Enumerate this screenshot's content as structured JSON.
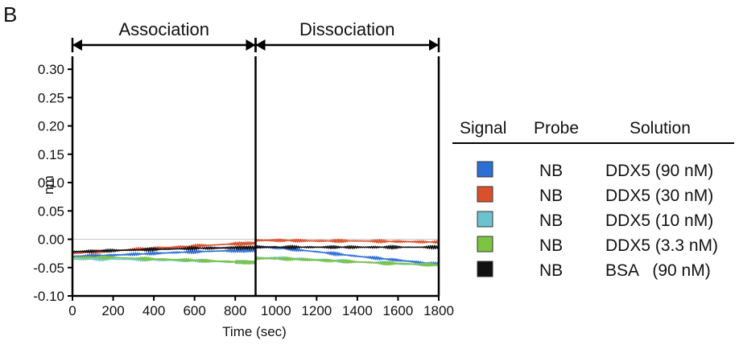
{
  "panel_label": "B",
  "chart_data": {
    "type": "line",
    "title": "",
    "xlabel": "Time (sec)",
    "ylabel": "nm",
    "xlim": [
      0,
      1800
    ],
    "ylim": [
      -0.1,
      0.32
    ],
    "x_ticks": [
      "0",
      "200",
      "400",
      "600",
      "800",
      "1000",
      "1200",
      "1400",
      "1600",
      "1800"
    ],
    "x_tick_values": [
      0,
      200,
      400,
      600,
      800,
      1000,
      1200,
      1400,
      1600,
      1800
    ],
    "y_ticks": [
      "-0.10",
      "-0.05",
      "0.00",
      "0.05",
      "0.10",
      "0.15",
      "0.20",
      "0.25",
      "0.30"
    ],
    "y_tick_values": [
      -0.1,
      -0.05,
      0.0,
      0.05,
      0.1,
      0.15,
      0.2,
      0.25,
      0.3
    ],
    "grid": false,
    "zero_line": true,
    "phase_boundary": 900,
    "phases": [
      {
        "label": "Association",
        "start": 0,
        "end": 900
      },
      {
        "label": "Dissociation",
        "start": 900,
        "end": 1800
      }
    ],
    "series": [
      {
        "color": "#2e6fd6",
        "x": [
          0,
          200,
          400,
          600,
          800,
          900,
          900,
          1000,
          1200,
          1400,
          1600,
          1800
        ],
        "y": [
          -0.03,
          -0.028,
          -0.025,
          -0.022,
          -0.02,
          -0.02,
          -0.012,
          -0.015,
          -0.022,
          -0.03,
          -0.037,
          -0.044
        ]
      },
      {
        "color": "#d9502b",
        "x": [
          0,
          200,
          400,
          600,
          800,
          900,
          900,
          1000,
          1200,
          1400,
          1600,
          1800
        ],
        "y": [
          -0.025,
          -0.02,
          -0.016,
          -0.012,
          -0.008,
          -0.007,
          -0.002,
          -0.002,
          -0.003,
          -0.003,
          -0.004,
          -0.005
        ]
      },
      {
        "color": "#6cc3cf",
        "x": [
          0,
          200,
          400,
          600,
          800,
          900,
          900,
          1000,
          1200,
          1400,
          1600,
          1800
        ],
        "y": [
          -0.035,
          -0.035,
          -0.036,
          -0.038,
          -0.04,
          -0.041,
          -0.033,
          -0.033,
          -0.036,
          -0.04,
          -0.043,
          -0.046
        ]
      },
      {
        "color": "#7cc442",
        "x": [
          0,
          200,
          400,
          600,
          800,
          900,
          900,
          1000,
          1200,
          1400,
          1600,
          1800
        ],
        "y": [
          -0.032,
          -0.032,
          -0.035,
          -0.037,
          -0.04,
          -0.041,
          -0.034,
          -0.034,
          -0.037,
          -0.04,
          -0.043,
          -0.045
        ]
      },
      {
        "color": "#111111",
        "x": [
          0,
          200,
          400,
          600,
          800,
          900,
          900,
          1000,
          1200,
          1400,
          1600,
          1800
        ],
        "y": [
          -0.022,
          -0.02,
          -0.018,
          -0.016,
          -0.015,
          -0.015,
          -0.014,
          -0.014,
          -0.014,
          -0.014,
          -0.014,
          -0.014
        ]
      }
    ]
  },
  "legend": {
    "headers": {
      "signal": "Signal",
      "probe": "Probe",
      "solution": "Solution"
    },
    "rows": [
      {
        "color": "#2e6fd6",
        "probe": "NB",
        "solution": "DDX5 (90 nM)"
      },
      {
        "color": "#d9502b",
        "probe": "NB",
        "solution": "DDX5 (30 nM)"
      },
      {
        "color": "#6cc3cf",
        "probe": "NB",
        "solution": "DDX5 (10 nM)"
      },
      {
        "color": "#7cc442",
        "probe": "NB",
        "solution": "DDX5 (3.3 nM)"
      },
      {
        "color": "#111111",
        "probe": "NB",
        "solution": "BSA   (90 nM)"
      }
    ]
  }
}
